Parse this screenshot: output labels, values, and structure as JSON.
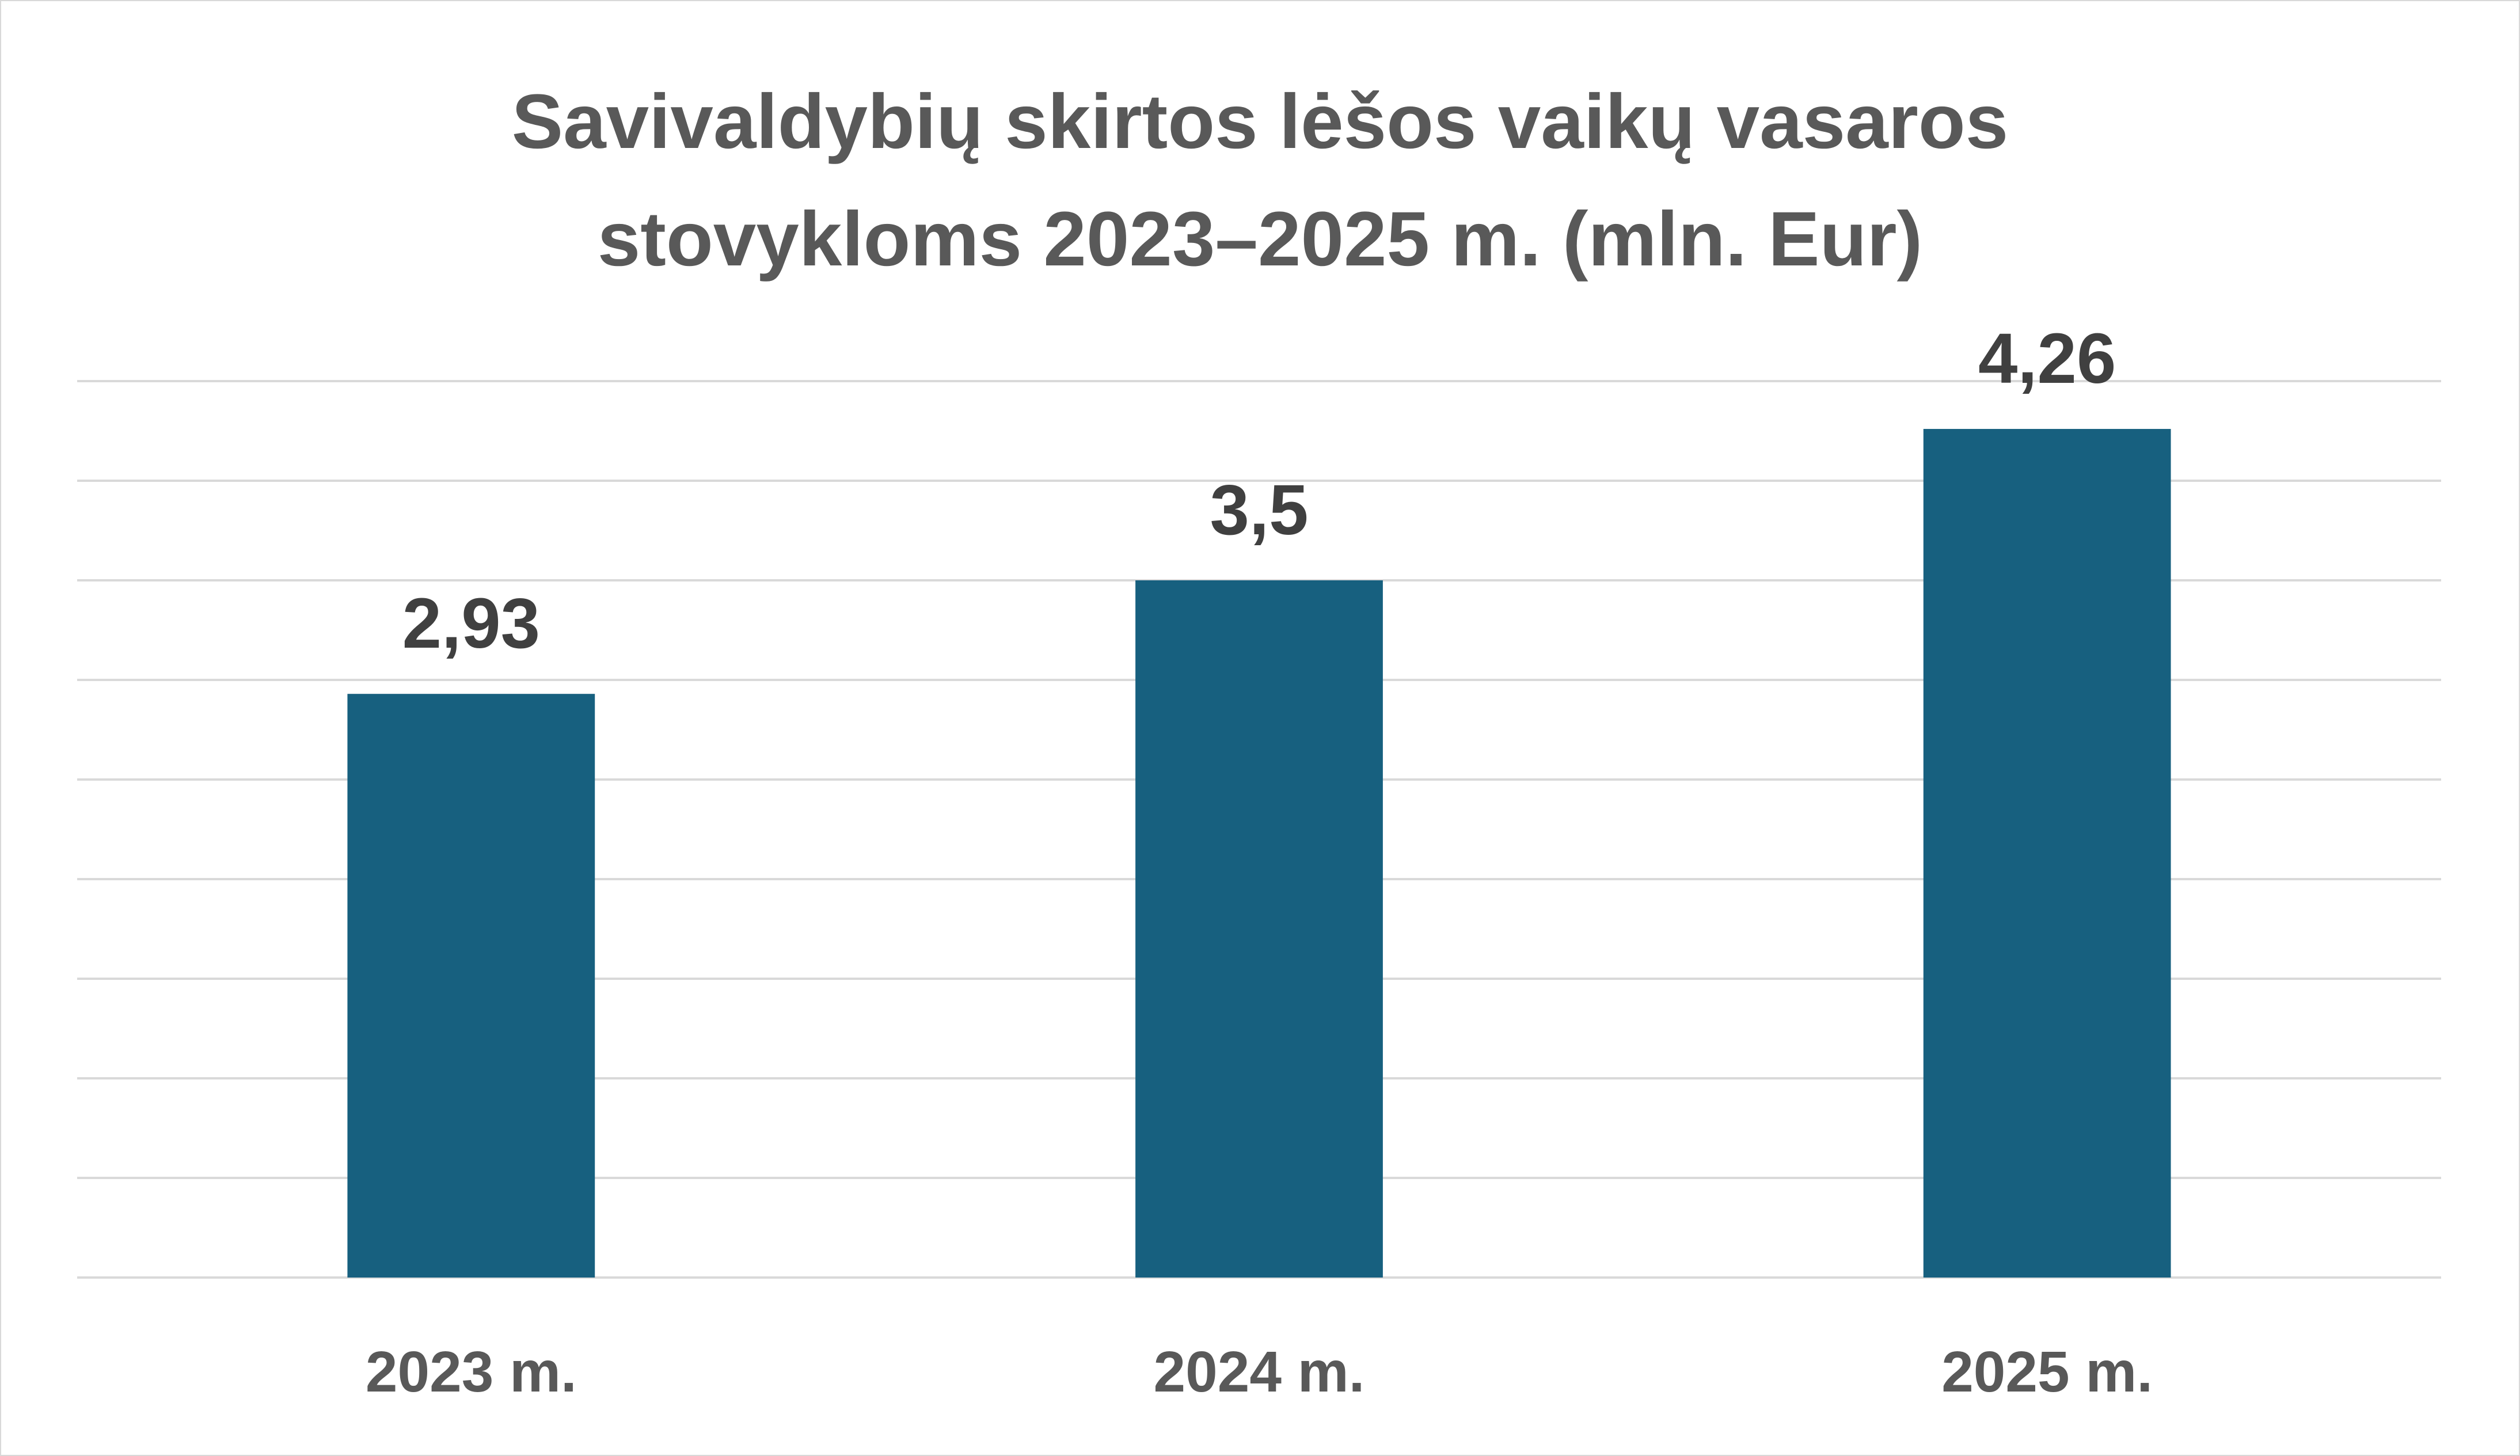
{
  "chart_data": {
    "type": "bar",
    "title": "Savivaldybių skirtos lėšos vaikų vasaros stovykloms 2023–2025 m. (mln. Eur)",
    "categories": [
      "2023 m.",
      "2024 m.",
      "2025 m."
    ],
    "values": [
      2.93,
      3.5,
      4.26
    ],
    "value_labels": [
      "2,93",
      "3,5",
      "4,26"
    ],
    "color": "#17607f",
    "ylim": [
      0,
      4.5
    ],
    "yticks": [
      0,
      0.5,
      1,
      1.5,
      2,
      2.5,
      3,
      3.5,
      4,
      4.5
    ],
    "grid": true
  }
}
